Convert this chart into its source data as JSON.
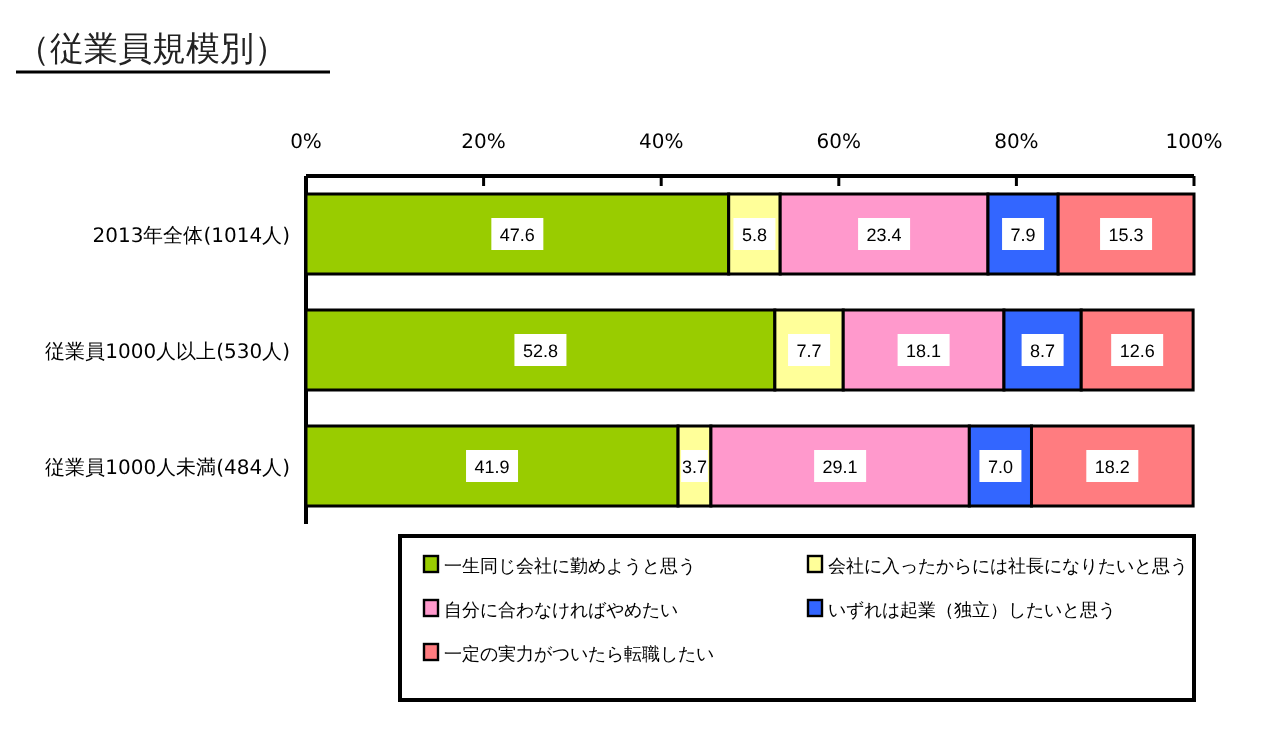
{
  "chart_data": {
    "type": "bar",
    "orientation": "horizontal",
    "stacked": true,
    "title": "（従業員規模別）",
    "categories": [
      "2013年全体(1014人)",
      "従業員1000人以上(530人)",
      "従業員1000人未満(484人)"
    ],
    "series": [
      {
        "name": "一生同じ会社に勤めようと思う",
        "color": "#99cc00",
        "values": [
          47.6,
          52.8,
          41.9
        ],
        "value_labels": [
          "47.6",
          "52.8",
          "41.9"
        ]
      },
      {
        "name": "会社に入ったからには社長になりたいと思う",
        "color": "#ffff99",
        "values": [
          5.8,
          7.7,
          3.7
        ],
        "value_labels": [
          "5.8",
          "7.7",
          "3.7"
        ]
      },
      {
        "name": "自分に合わなければやめたい",
        "color": "#ff99cc",
        "values": [
          23.4,
          18.1,
          29.1
        ],
        "value_labels": [
          "23.4",
          "18.1",
          "29.1"
        ]
      },
      {
        "name": "いずれは起業（独立）したいと思う",
        "color": "#3366ff",
        "values": [
          7.9,
          8.7,
          7.0
        ],
        "value_labels": [
          "7.9",
          "8.7",
          "7.0"
        ]
      },
      {
        "name": "一定の実力がついたら転職したい",
        "color": "#ff7c80",
        "values": [
          15.3,
          12.6,
          18.2
        ],
        "value_labels": [
          "15.3",
          "12.6",
          "18.2"
        ]
      }
    ],
    "xlim": [
      0,
      100
    ],
    "xticks": [
      {
        "value": 0,
        "label": "0%"
      },
      {
        "value": 20,
        "label": "20%"
      },
      {
        "value": 40,
        "label": "40%"
      },
      {
        "value": 60,
        "label": "60%"
      },
      {
        "value": 80,
        "label": "80%"
      },
      {
        "value": 100,
        "label": "100%"
      }
    ],
    "legend": "bottom"
  }
}
